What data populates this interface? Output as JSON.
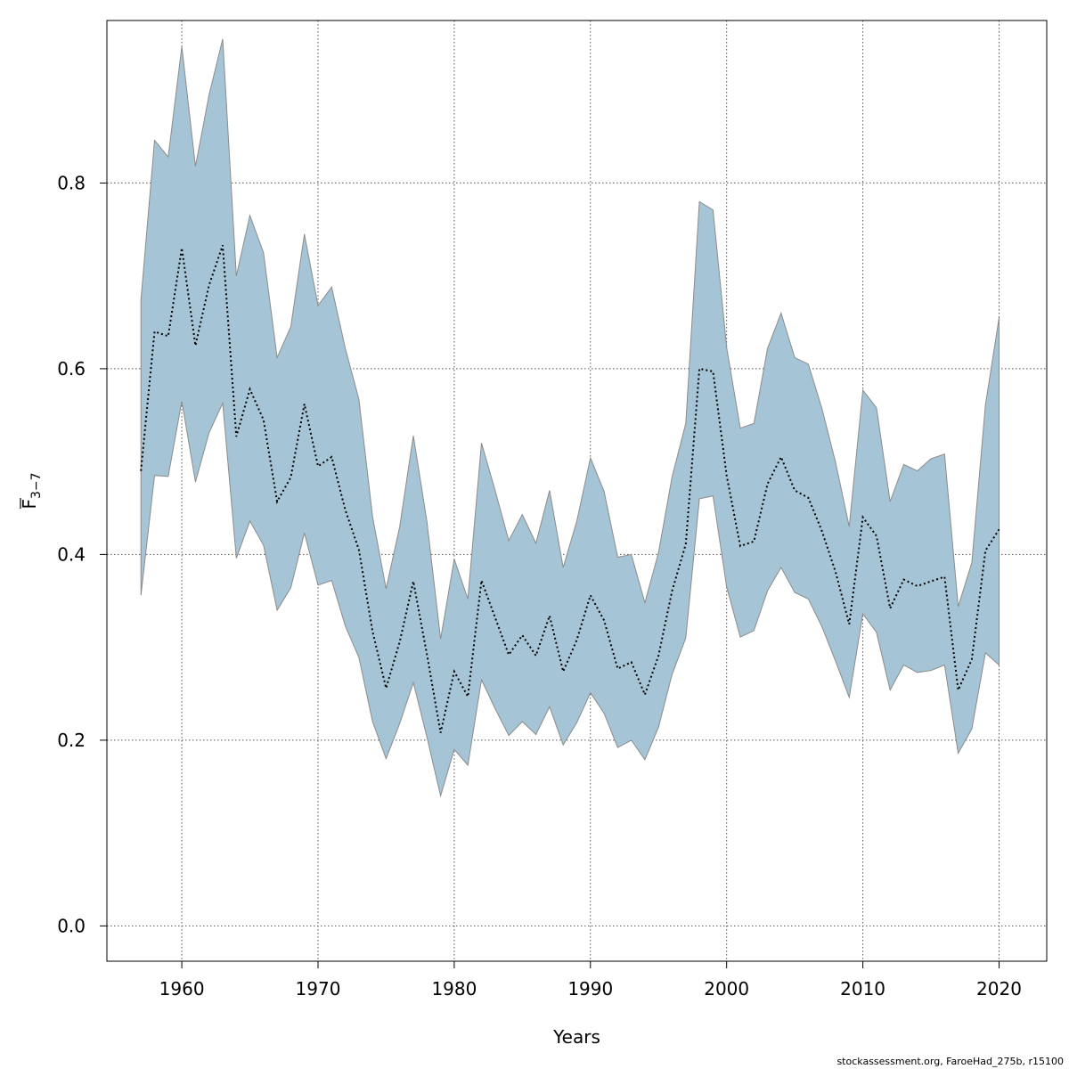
{
  "chart_data": {
    "type": "area",
    "title": "",
    "xlabel": "Years",
    "ylabel_main": "F",
    "ylabel_sub": "3−7",
    "xlim": [
      1954.5,
      2023.5
    ],
    "ylim": [
      -0.038,
      0.975
    ],
    "xticks": [
      1960,
      1970,
      1980,
      1990,
      2000,
      2010,
      2020
    ],
    "xtick_labels": [
      "1960",
      "1970",
      "1980",
      "1990",
      "2000",
      "2010",
      "2020"
    ],
    "yticks": [
      0.0,
      0.2,
      0.4,
      0.6,
      0.8
    ],
    "ytick_labels": [
      "0.0",
      "0.2",
      "0.4",
      "0.6",
      "0.8"
    ],
    "grid": true,
    "legend": "none",
    "colors": {
      "band_fill": "#a5c4d5",
      "band_edge": "#8c8c8c",
      "line": "#000000",
      "grid": "#555555"
    },
    "x": [
      1957,
      1958,
      1959,
      1960,
      1961,
      1962,
      1963,
      1964,
      1965,
      1966,
      1967,
      1968,
      1969,
      1970,
      1971,
      1972,
      1973,
      1974,
      1975,
      1976,
      1977,
      1978,
      1979,
      1980,
      1981,
      1982,
      1983,
      1984,
      1985,
      1986,
      1987,
      1988,
      1989,
      1990,
      1991,
      1992,
      1993,
      1994,
      1995,
      1996,
      1997,
      1998,
      1999,
      2000,
      2001,
      2002,
      2003,
      2004,
      2005,
      2006,
      2007,
      2008,
      2009,
      2010,
      2011,
      2012,
      2013,
      2014,
      2015,
      2016,
      2017,
      2018,
      2019,
      2020
    ],
    "series": [
      {
        "name": "",
        "values": [
          0.49,
          0.64,
          0.635,
          0.73,
          0.625,
          0.69,
          0.733,
          0.527,
          0.578,
          0.545,
          0.457,
          0.483,
          0.562,
          0.495,
          0.505,
          0.448,
          0.405,
          0.317,
          0.256,
          0.306,
          0.371,
          0.292,
          0.208,
          0.274,
          0.247,
          0.372,
          0.332,
          0.292,
          0.313,
          0.291,
          0.334,
          0.274,
          0.308,
          0.356,
          0.329,
          0.277,
          0.284,
          0.249,
          0.291,
          0.361,
          0.411,
          0.6,
          0.597,
          0.485,
          0.409,
          0.414,
          0.476,
          0.505,
          0.469,
          0.461,
          0.425,
          0.381,
          0.325,
          0.44,
          0.42,
          0.342,
          0.373,
          0.366,
          0.371,
          0.376,
          0.254,
          0.287,
          0.404,
          0.427
        ],
        "lower": [
          0.356,
          0.485,
          0.484,
          0.565,
          0.478,
          0.531,
          0.563,
          0.396,
          0.436,
          0.41,
          0.34,
          0.364,
          0.423,
          0.367,
          0.372,
          0.323,
          0.289,
          0.22,
          0.18,
          0.218,
          0.262,
          0.203,
          0.14,
          0.19,
          0.173,
          0.265,
          0.234,
          0.205,
          0.22,
          0.206,
          0.236,
          0.195,
          0.219,
          0.251,
          0.229,
          0.192,
          0.2,
          0.179,
          0.214,
          0.271,
          0.31,
          0.46,
          0.463,
          0.365,
          0.311,
          0.318,
          0.361,
          0.386,
          0.359,
          0.352,
          0.322,
          0.285,
          0.246,
          0.336,
          0.316,
          0.254,
          0.281,
          0.273,
          0.275,
          0.281,
          0.186,
          0.212,
          0.294,
          0.281
        ],
        "upper": [
          0.674,
          0.846,
          0.828,
          0.947,
          0.818,
          0.895,
          0.955,
          0.7,
          0.765,
          0.725,
          0.612,
          0.645,
          0.745,
          0.668,
          0.688,
          0.622,
          0.567,
          0.441,
          0.363,
          0.43,
          0.528,
          0.435,
          0.309,
          0.395,
          0.352,
          0.52,
          0.469,
          0.415,
          0.443,
          0.412,
          0.469,
          0.386,
          0.436,
          0.504,
          0.468,
          0.397,
          0.4,
          0.348,
          0.402,
          0.484,
          0.541,
          0.78,
          0.771,
          0.623,
          0.536,
          0.541,
          0.622,
          0.66,
          0.612,
          0.605,
          0.557,
          0.499,
          0.43,
          0.577,
          0.558,
          0.457,
          0.497,
          0.49,
          0.503,
          0.508,
          0.344,
          0.391,
          0.561,
          0.655
        ]
      }
    ]
  },
  "footer_text": "stockassessment.org, FaroeHad_275b, r15100"
}
